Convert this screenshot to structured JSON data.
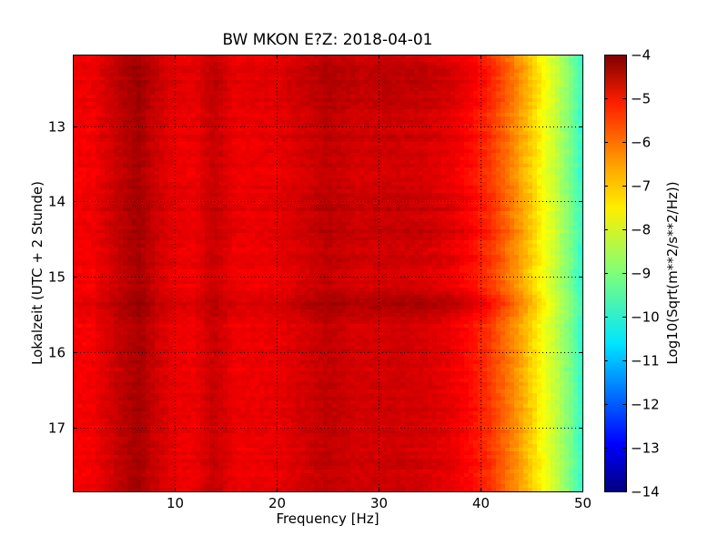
{
  "chart_data": {
    "type": "heatmap",
    "title": "BW MKON E?Z: 2018-04-01",
    "xlabel": "Frequency [Hz]",
    "ylabel": "Lokalzeit (UTC + 2 Stunde)",
    "xlim": [
      0,
      50
    ],
    "ylim": [
      17.85,
      12.05
    ],
    "y_inverted": true,
    "x_ticks": [
      10,
      20,
      30,
      40,
      50
    ],
    "y_ticks": [
      13,
      14,
      15,
      16,
      17
    ],
    "grid": true,
    "colormap": "jet",
    "colorbar": {
      "label": "Log10(Sqrt(m**2/s**2/Hz))",
      "range": [
        -14,
        -4
      ],
      "ticks": [
        -4,
        -5,
        -6,
        -7,
        -8,
        -9,
        -10,
        -11,
        -12,
        -13,
        -14
      ]
    },
    "spectrum_profile": {
      "frequency_hz": [
        0,
        2,
        5,
        6.5,
        8,
        10,
        12,
        13.8,
        16,
        20,
        22,
        25,
        28,
        31,
        34,
        37,
        39,
        41,
        43,
        45,
        47,
        48.5,
        50
      ],
      "log_amplitude": [
        -5.2,
        -5.15,
        -4.6,
        -4.4,
        -4.75,
        -5.05,
        -5.1,
        -4.7,
        -5.1,
        -5.05,
        -4.9,
        -4.65,
        -4.85,
        -4.8,
        -4.85,
        -5.05,
        -5.35,
        -5.8,
        -6.5,
        -7.3,
        -8.2,
        -8.9,
        -9.8
      ]
    },
    "time_bands": [
      {
        "center_hour": 12.35,
        "width_h": 0.2,
        "delta": 0.3
      },
      {
        "center_hour": 12.7,
        "width_h": 0.12,
        "delta": 0.25
      },
      {
        "center_hour": 13.15,
        "width_h": 0.05,
        "delta": 0.2
      },
      {
        "center_hour": 13.95,
        "width_h": 0.05,
        "delta": 0.25
      },
      {
        "center_hour": 14.1,
        "width_h": 0.05,
        "delta": 0.2
      },
      {
        "center_hour": 14.4,
        "width_h": 0.1,
        "delta": 0.3
      },
      {
        "center_hour": 14.75,
        "width_h": 0.05,
        "delta": 0.2
      },
      {
        "center_hour": 15.35,
        "width_h": 0.15,
        "delta": 0.5
      },
      {
        "center_hour": 16.75,
        "width_h": 0.04,
        "delta": 0.15
      },
      {
        "center_hour": 17.1,
        "width_h": 0.05,
        "delta": 0.15
      },
      {
        "center_hour": 17.5,
        "width_h": 0.1,
        "delta": 0.15
      }
    ]
  }
}
